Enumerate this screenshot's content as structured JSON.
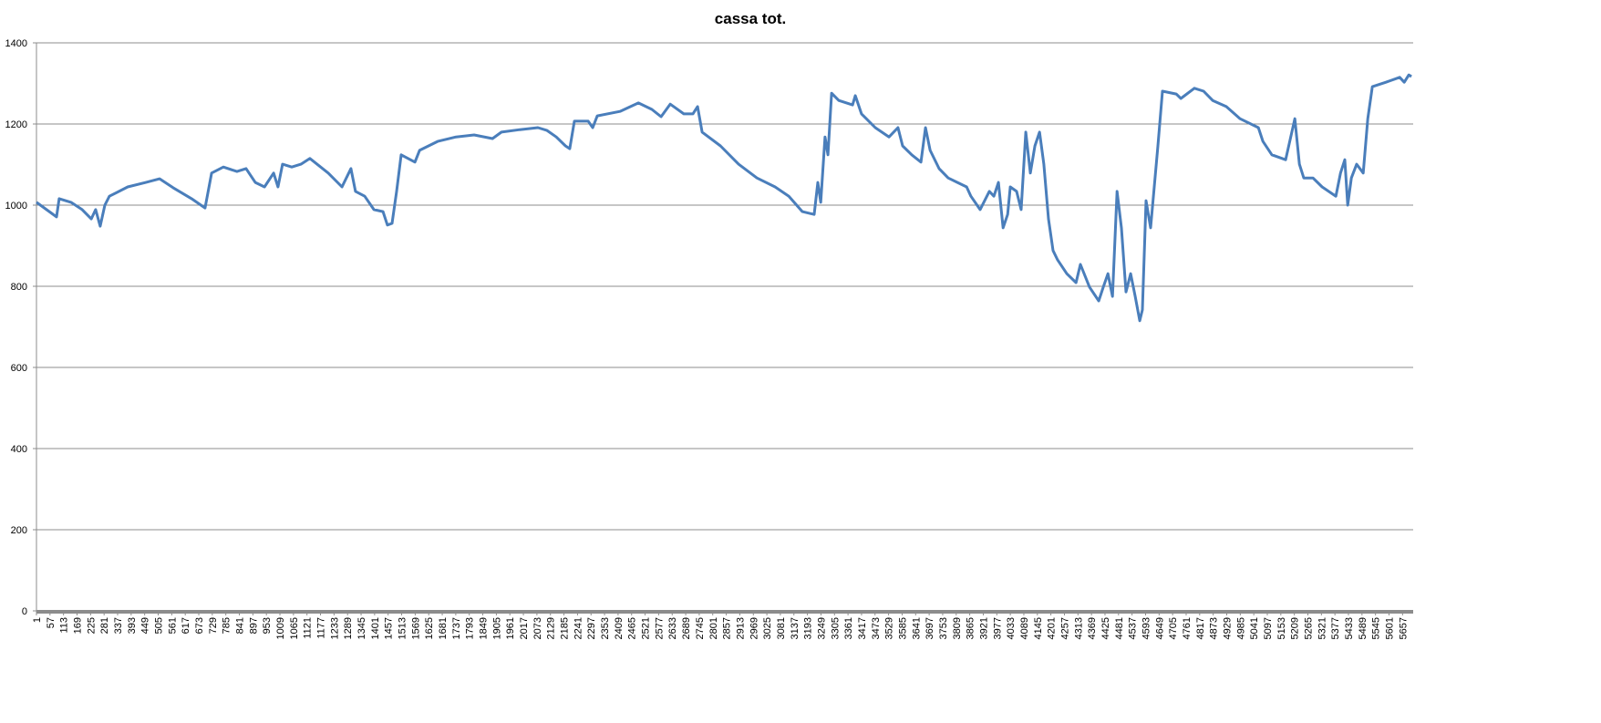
{
  "chart_data": {
    "type": "line",
    "title": "cassa tot.",
    "color": "#4a7ebb",
    "grid": true,
    "ylim": [
      0,
      1400
    ],
    "yticks": [
      0,
      200,
      400,
      600,
      800,
      1000,
      1200,
      1400
    ],
    "xlim": [
      1,
      5701
    ],
    "xticks": [
      1,
      57,
      113,
      169,
      225,
      281,
      337,
      393,
      449,
      505,
      561,
      617,
      673,
      729,
      785,
      841,
      897,
      953,
      1009,
      1065,
      1121,
      1177,
      1233,
      1289,
      1345,
      1401,
      1457,
      1513,
      1569,
      1625,
      1681,
      1737,
      1793,
      1849,
      1905,
      1961,
      2017,
      2073,
      2129,
      2185,
      2241,
      2297,
      2353,
      2409,
      2465,
      2521,
      2577,
      2633,
      2689,
      2745,
      2801,
      2857,
      2913,
      2969,
      3025,
      3081,
      3137,
      3193,
      3249,
      3305,
      3361,
      3417,
      3473,
      3529,
      3585,
      3641,
      3697,
      3753,
      3809,
      3865,
      3921,
      3977,
      4033,
      4089,
      4145,
      4201,
      4257,
      4313,
      4369,
      4425,
      4481,
      4537,
      4593,
      4649,
      4705,
      4761,
      4817,
      4873,
      4929,
      4985,
      5041,
      5097,
      5153,
      5209,
      5265,
      5321,
      5377,
      5433,
      5489,
      5545,
      5601,
      5657
    ],
    "x": [
      1,
      84,
      95,
      144,
      190,
      228,
      246,
      265,
      284,
      303,
      379,
      454,
      511,
      567,
      643,
      699,
      726,
      775,
      831,
      869,
      907,
      945,
      983,
      1001,
      1020,
      1058,
      1096,
      1133,
      1209,
      1266,
      1303,
      1322,
      1360,
      1398,
      1436,
      1454,
      1473,
      1492,
      1511,
      1568,
      1587,
      1662,
      1738,
      1813,
      1889,
      1926,
      2002,
      2077,
      2115,
      2153,
      2191,
      2209,
      2228,
      2285,
      2304,
      2323,
      2417,
      2493,
      2549,
      2587,
      2625,
      2681,
      2719,
      2738,
      2757,
      2833,
      2908,
      2984,
      3059,
      3116,
      3172,
      3221,
      3236,
      3248,
      3266,
      3278,
      3293,
      3323,
      3380,
      3391,
      3417,
      3474,
      3531,
      3568,
      3587,
      3625,
      3663,
      3682,
      3701,
      3738,
      3776,
      3814,
      3852,
      3870,
      3908,
      3946,
      3965,
      3984,
      4003,
      4022,
      4033,
      4059,
      4078,
      4097,
      4116,
      4135,
      4154,
      4172,
      4191,
      4210,
      4229,
      4267,
      4305,
      4323,
      4361,
      4399,
      4418,
      4437,
      4456,
      4475,
      4493,
      4512,
      4531,
      4550,
      4569,
      4580,
      4595,
      4614,
      4644,
      4663,
      4720,
      4739,
      4795,
      4833,
      4871,
      4927,
      4984,
      5060,
      5079,
      5116,
      5173,
      5211,
      5230,
      5248,
      5286,
      5324,
      5381,
      5400,
      5418,
      5430,
      5445,
      5467,
      5494,
      5513,
      5532,
      5588,
      5645,
      5664,
      5683,
      5694
    ],
    "values": [
      1007,
      971,
      1016,
      1007,
      989,
      966,
      989,
      948,
      1000,
      1022,
      1045,
      1056,
      1065,
      1043,
      1016,
      993,
      1079,
      1094,
      1083,
      1090,
      1056,
      1045,
      1079,
      1045,
      1101,
      1094,
      1101,
      1115,
      1079,
      1045,
      1090,
      1034,
      1022,
      989,
      984,
      951,
      955,
      1034,
      1124,
      1106,
      1135,
      1157,
      1168,
      1173,
      1164,
      1180,
      1186,
      1191,
      1184,
      1168,
      1146,
      1139,
      1207,
      1207,
      1191,
      1220,
      1231,
      1252,
      1236,
      1218,
      1249,
      1225,
      1225,
      1243,
      1180,
      1146,
      1101,
      1067,
      1045,
      1022,
      984,
      977,
      1056,
      1007,
      1168,
      1124,
      1276,
      1258,
      1247,
      1270,
      1225,
      1191,
      1168,
      1191,
      1146,
      1124,
      1106,
      1191,
      1135,
      1090,
      1067,
      1056,
      1045,
      1022,
      989,
      1034,
      1022,
      1056,
      944,
      977,
      1045,
      1034,
      989,
      1180,
      1079,
      1146,
      1180,
      1101,
      966,
      888,
      865,
      831,
      809,
      854,
      798,
      764,
      798,
      831,
      775,
      1034,
      944,
      786,
      831,
      775,
      715,
      742,
      1011,
      944,
      1146,
      1281,
      1274,
      1263,
      1288,
      1281,
      1258,
      1243,
      1213,
      1191,
      1157,
      1124,
      1112,
      1213,
      1101,
      1067,
      1067,
      1045,
      1022,
      1079,
      1112,
      1000,
      1067,
      1101,
      1079,
      1213,
      1292,
      1303,
      1315,
      1303,
      1321,
      1317
    ]
  }
}
